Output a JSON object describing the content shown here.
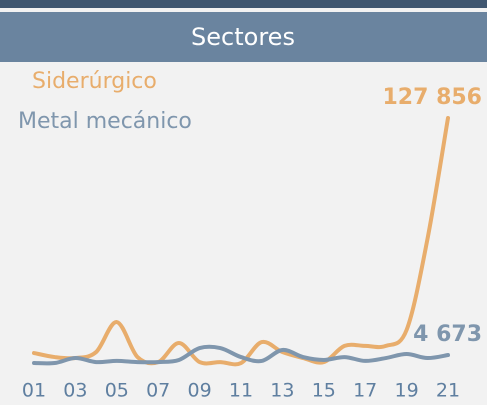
{
  "chart_data": {
    "type": "line",
    "title": "Sectores",
    "categories": [
      "01",
      null,
      "03",
      null,
      "05",
      null,
      "07",
      null,
      "09",
      null,
      "11",
      null,
      "13",
      null,
      "15",
      null,
      "17",
      null,
      "19",
      null,
      "21"
    ],
    "series": [
      {
        "name": "Siderúrgico",
        "color": "#e8ad6c",
        "values": [
          5700,
          3600,
          3100,
          6200,
          21800,
          3600,
          1000,
          10900,
          1000,
          1000,
          500,
          11400,
          6200,
          3100,
          1000,
          9400,
          9400,
          9400,
          17700,
          64500,
          127856
        ],
        "value_labels": [
          null,
          null,
          null,
          null,
          null,
          null,
          null,
          null,
          null,
          null,
          null,
          null,
          null,
          null,
          null,
          null,
          null,
          null,
          null,
          null,
          "127 856"
        ]
      },
      {
        "name": "Metal mecánico",
        "color": "#7f96ad",
        "values": [
          500,
          500,
          3100,
          1000,
          1600,
          1000,
          1000,
          2100,
          8300,
          8300,
          3600,
          1600,
          7300,
          3600,
          2100,
          3600,
          1600,
          3100,
          5200,
          3100,
          4673
        ],
        "value_labels": [
          null,
          null,
          null,
          null,
          null,
          null,
          null,
          null,
          null,
          null,
          null,
          null,
          null,
          null,
          null,
          null,
          null,
          null,
          null,
          null,
          "4 673"
        ]
      }
    ]
  }
}
